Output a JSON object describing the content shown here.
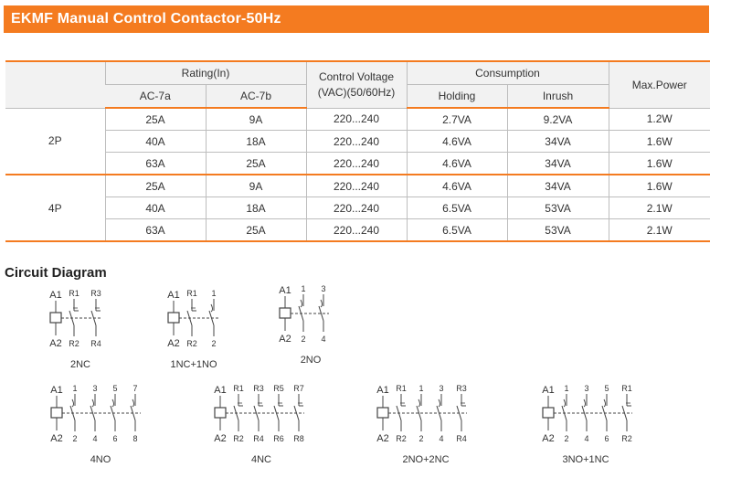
{
  "banner": {
    "title": "EKMF Manual Control Contactor-50Hz"
  },
  "table": {
    "headers": {
      "rating": "Rating(In)",
      "ac7a": "AC-7a",
      "ac7b": "AC-7b",
      "voltage_line1": "Control Voltage",
      "voltage_line2": "(VAC)(50/60Hz)",
      "consumption": "Consumption",
      "holding": "Holding",
      "inrush": "Inrush",
      "max_power": "Max.Power"
    },
    "groups": [
      {
        "label": "2P",
        "rows": [
          {
            "ac7a": "25A",
            "ac7b": "9A",
            "voltage": "220...240",
            "holding": "2.7VA",
            "inrush": "9.2VA",
            "max_power": "1.2W"
          },
          {
            "ac7a": "40A",
            "ac7b": "18A",
            "voltage": "220...240",
            "holding": "4.6VA",
            "inrush": "34VA",
            "max_power": "1.6W"
          },
          {
            "ac7a": "63A",
            "ac7b": "25A",
            "voltage": "220...240",
            "holding": "4.6VA",
            "inrush": "34VA",
            "max_power": "1.6W"
          }
        ]
      },
      {
        "label": "4P",
        "rows": [
          {
            "ac7a": "25A",
            "ac7b": "9A",
            "voltage": "220...240",
            "holding": "4.6VA",
            "inrush": "34VA",
            "max_power": "1.6W"
          },
          {
            "ac7a": "40A",
            "ac7b": "18A",
            "voltage": "220...240",
            "holding": "6.5VA",
            "inrush": "53VA",
            "max_power": "2.1W"
          },
          {
            "ac7a": "63A",
            "ac7b": "25A",
            "voltage": "220...240",
            "holding": "6.5VA",
            "inrush": "53VA",
            "max_power": "2.1W"
          }
        ]
      }
    ]
  },
  "circuit": {
    "title": "Circuit Diagram",
    "colors": {
      "line": "#444444",
      "text": "#333333"
    },
    "diagrams": [
      {
        "caption": "2NC",
        "coil_top": "A1",
        "coil_bottom": "A2",
        "contacts": [
          {
            "type": "NC",
            "top": "R1",
            "bottom": "R2"
          },
          {
            "type": "NC",
            "top": "R3",
            "bottom": "R4"
          }
        ]
      },
      {
        "caption": "1NC+1NO",
        "coil_top": "A1",
        "coil_bottom": "A2",
        "contacts": [
          {
            "type": "NC",
            "top": "R1",
            "bottom": "R2"
          },
          {
            "type": "NO",
            "top": "1",
            "bottom": "2"
          }
        ]
      },
      {
        "caption": "2NO",
        "coil_top": "A1",
        "coil_bottom": "A2",
        "contacts": [
          {
            "type": "NO",
            "top": "1",
            "bottom": "2"
          },
          {
            "type": "NO",
            "top": "3",
            "bottom": "4"
          }
        ]
      },
      {
        "caption": "4NO",
        "coil_top": "A1",
        "coil_bottom": "A2",
        "contacts": [
          {
            "type": "NO",
            "top": "1",
            "bottom": "2"
          },
          {
            "type": "NO",
            "top": "3",
            "bottom": "4"
          },
          {
            "type": "NO",
            "top": "5",
            "bottom": "6"
          },
          {
            "type": "NO",
            "top": "7",
            "bottom": "8"
          }
        ]
      },
      {
        "caption": "4NC",
        "coil_top": "A1",
        "coil_bottom": "A2",
        "contacts": [
          {
            "type": "NC",
            "top": "R1",
            "bottom": "R2"
          },
          {
            "type": "NC",
            "top": "R3",
            "bottom": "R4"
          },
          {
            "type": "NC",
            "top": "R5",
            "bottom": "R6"
          },
          {
            "type": "NC",
            "top": "R7",
            "bottom": "R8"
          }
        ]
      },
      {
        "caption": "2NO+2NC",
        "coil_top": "A1",
        "coil_bottom": "A2",
        "contacts": [
          {
            "type": "NC",
            "top": "R1",
            "bottom": "R2"
          },
          {
            "type": "NO",
            "top": "1",
            "bottom": "2"
          },
          {
            "type": "NO",
            "top": "3",
            "bottom": "4"
          },
          {
            "type": "NC",
            "top": "R3",
            "bottom": "R4"
          }
        ]
      },
      {
        "caption": "3NO+1NC",
        "coil_top": "A1",
        "coil_bottom": "A2",
        "contacts": [
          {
            "type": "NO",
            "top": "1",
            "bottom": "2"
          },
          {
            "type": "NO",
            "top": "3",
            "bottom": "4"
          },
          {
            "type": "NO",
            "top": "5",
            "bottom": "6"
          },
          {
            "type": "NC",
            "top": "R1",
            "bottom": "R2"
          }
        ]
      }
    ]
  }
}
